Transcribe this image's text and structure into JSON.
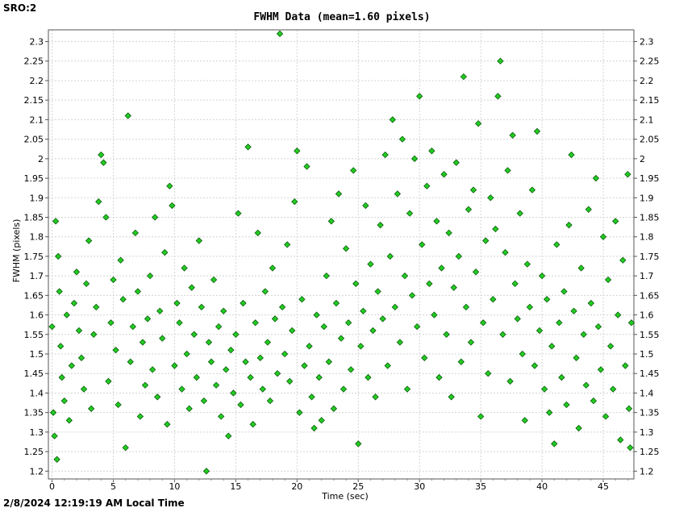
{
  "window": {
    "corner_label": "SRO:2"
  },
  "footer": {
    "timestamp": "2/8/2024 12:19:19 AM Local Time"
  },
  "colors": {
    "point_fill": "#22cc22",
    "point_stroke": "#0a5a0a",
    "grid": "#d4d4d4",
    "background": "#ffffff"
  },
  "chart_data": {
    "type": "scatter",
    "title": "FWHM Data (mean=1.60 pixels)",
    "xlabel": "Time (sec)",
    "ylabel": "FWHM (pixels)",
    "xlim": [
      -0.3,
      47.5
    ],
    "ylim": [
      1.18,
      2.33
    ],
    "x_ticks": [
      0,
      5,
      10,
      15,
      20,
      25,
      30,
      35,
      40,
      45
    ],
    "y_ticks": [
      1.2,
      1.25,
      1.3,
      1.35,
      1.4,
      1.45,
      1.5,
      1.55,
      1.6,
      1.65,
      1.7,
      1.75,
      1.8,
      1.85,
      1.9,
      1.95,
      2,
      2.05,
      2.1,
      2.15,
      2.2,
      2.25,
      2.3
    ],
    "y_tick_labels": [
      "1.2",
      "1.25",
      "1.3",
      "1.35",
      "1.4",
      "1.45",
      "1.5",
      "1.55",
      "1.6",
      "1.65",
      "1.7",
      "1.75",
      "1.8",
      "1.85",
      "1.9",
      "1.95",
      "2",
      "2.05",
      "2.1",
      "2.15",
      "2.2",
      "2.25",
      "2.3"
    ],
    "grid": true,
    "dual_y_axis": true,
    "mean": 1.6,
    "marker": "diamond",
    "series": [
      {
        "name": "",
        "points": [
          [
            0.0,
            1.57
          ],
          [
            0.1,
            1.35
          ],
          [
            0.2,
            1.29
          ],
          [
            0.3,
            1.84
          ],
          [
            0.4,
            1.23
          ],
          [
            0.5,
            1.75
          ],
          [
            0.6,
            1.66
          ],
          [
            0.7,
            1.52
          ],
          [
            0.8,
            1.44
          ],
          [
            1.0,
            1.38
          ],
          [
            1.2,
            1.6
          ],
          [
            1.4,
            1.33
          ],
          [
            1.6,
            1.47
          ],
          [
            1.8,
            1.63
          ],
          [
            2.0,
            1.71
          ],
          [
            2.2,
            1.56
          ],
          [
            2.4,
            1.49
          ],
          [
            2.6,
            1.41
          ],
          [
            2.8,
            1.68
          ],
          [
            3.0,
            1.79
          ],
          [
            3.2,
            1.36
          ],
          [
            3.4,
            1.55
          ],
          [
            3.6,
            1.62
          ],
          [
            3.8,
            1.89
          ],
          [
            4.0,
            2.01
          ],
          [
            4.2,
            1.99
          ],
          [
            4.4,
            1.85
          ],
          [
            4.6,
            1.43
          ],
          [
            4.8,
            1.58
          ],
          [
            5.0,
            1.69
          ],
          [
            5.2,
            1.51
          ],
          [
            5.4,
            1.37
          ],
          [
            5.6,
            1.74
          ],
          [
            5.8,
            1.64
          ],
          [
            6.0,
            1.26
          ],
          [
            6.2,
            2.11
          ],
          [
            6.4,
            1.48
          ],
          [
            6.6,
            1.57
          ],
          [
            6.8,
            1.81
          ],
          [
            7.0,
            1.66
          ],
          [
            7.2,
            1.34
          ],
          [
            7.4,
            1.53
          ],
          [
            7.6,
            1.42
          ],
          [
            7.8,
            1.59
          ],
          [
            8.0,
            1.7
          ],
          [
            8.2,
            1.46
          ],
          [
            8.4,
            1.85
          ],
          [
            8.6,
            1.39
          ],
          [
            8.8,
            1.61
          ],
          [
            9.0,
            1.54
          ],
          [
            9.2,
            1.76
          ],
          [
            9.4,
            1.32
          ],
          [
            9.6,
            1.93
          ],
          [
            9.8,
            1.88
          ],
          [
            10.0,
            1.47
          ],
          [
            10.2,
            1.63
          ],
          [
            10.4,
            1.58
          ],
          [
            10.6,
            1.41
          ],
          [
            10.8,
            1.72
          ],
          [
            11.0,
            1.5
          ],
          [
            11.2,
            1.36
          ],
          [
            11.4,
            1.67
          ],
          [
            11.6,
            1.55
          ],
          [
            11.8,
            1.44
          ],
          [
            12.0,
            1.79
          ],
          [
            12.2,
            1.62
          ],
          [
            12.4,
            1.38
          ],
          [
            12.6,
            1.2
          ],
          [
            12.8,
            1.53
          ],
          [
            13.0,
            1.48
          ],
          [
            13.2,
            1.69
          ],
          [
            13.4,
            1.42
          ],
          [
            13.6,
            1.57
          ],
          [
            13.8,
            1.34
          ],
          [
            14.0,
            1.61
          ],
          [
            14.2,
            1.46
          ],
          [
            14.4,
            1.29
          ],
          [
            14.6,
            1.51
          ],
          [
            14.8,
            1.4
          ],
          [
            15.0,
            1.55
          ],
          [
            15.2,
            1.86
          ],
          [
            15.4,
            1.37
          ],
          [
            15.6,
            1.63
          ],
          [
            15.8,
            1.48
          ],
          [
            16.0,
            2.03
          ],
          [
            16.2,
            1.44
          ],
          [
            16.4,
            1.32
          ],
          [
            16.6,
            1.58
          ],
          [
            16.8,
            1.81
          ],
          [
            17.0,
            1.49
          ],
          [
            17.2,
            1.41
          ],
          [
            17.4,
            1.66
          ],
          [
            17.6,
            1.53
          ],
          [
            17.8,
            1.38
          ],
          [
            18.0,
            1.72
          ],
          [
            18.2,
            1.59
          ],
          [
            18.4,
            1.45
          ],
          [
            18.6,
            2.32
          ],
          [
            18.8,
            1.62
          ],
          [
            19.0,
            1.5
          ],
          [
            19.2,
            1.78
          ],
          [
            19.4,
            1.43
          ],
          [
            19.6,
            1.56
          ],
          [
            19.8,
            1.89
          ],
          [
            20.0,
            2.02
          ],
          [
            20.2,
            1.35
          ],
          [
            20.4,
            1.64
          ],
          [
            20.6,
            1.47
          ],
          [
            20.8,
            1.98
          ],
          [
            21.0,
            1.52
          ],
          [
            21.2,
            1.39
          ],
          [
            21.4,
            1.31
          ],
          [
            21.6,
            1.6
          ],
          [
            21.8,
            1.44
          ],
          [
            22.0,
            1.33
          ],
          [
            22.2,
            1.57
          ],
          [
            22.4,
            1.7
          ],
          [
            22.6,
            1.48
          ],
          [
            22.8,
            1.84
          ],
          [
            23.0,
            1.36
          ],
          [
            23.2,
            1.63
          ],
          [
            23.4,
            1.91
          ],
          [
            23.6,
            1.54
          ],
          [
            23.8,
            1.41
          ],
          [
            24.0,
            1.77
          ],
          [
            24.2,
            1.58
          ],
          [
            24.4,
            1.46
          ],
          [
            24.6,
            1.97
          ],
          [
            24.8,
            1.68
          ],
          [
            25.0,
            1.27
          ],
          [
            25.2,
            1.52
          ],
          [
            25.4,
            1.61
          ],
          [
            25.6,
            1.88
          ],
          [
            25.8,
            1.44
          ],
          [
            26.0,
            1.73
          ],
          [
            26.2,
            1.56
          ],
          [
            26.4,
            1.39
          ],
          [
            26.6,
            1.66
          ],
          [
            26.8,
            1.83
          ],
          [
            27.0,
            1.59
          ],
          [
            27.2,
            2.01
          ],
          [
            27.4,
            1.47
          ],
          [
            27.6,
            1.75
          ],
          [
            27.8,
            2.1
          ],
          [
            28.0,
            1.62
          ],
          [
            28.2,
            1.91
          ],
          [
            28.4,
            1.53
          ],
          [
            28.6,
            2.05
          ],
          [
            28.8,
            1.7
          ],
          [
            29.0,
            1.41
          ],
          [
            29.2,
            1.86
          ],
          [
            29.4,
            1.65
          ],
          [
            29.6,
            2.0
          ],
          [
            29.8,
            1.57
          ],
          [
            30.0,
            2.16
          ],
          [
            30.2,
            1.78
          ],
          [
            30.4,
            1.49
          ],
          [
            30.6,
            1.93
          ],
          [
            30.8,
            1.68
          ],
          [
            31.0,
            2.02
          ],
          [
            31.2,
            1.6
          ],
          [
            31.4,
            1.84
          ],
          [
            31.6,
            1.44
          ],
          [
            31.8,
            1.72
          ],
          [
            32.0,
            1.96
          ],
          [
            32.2,
            1.55
          ],
          [
            32.4,
            1.81
          ],
          [
            32.6,
            1.39
          ],
          [
            32.8,
            1.67
          ],
          [
            33.0,
            1.99
          ],
          [
            33.2,
            1.75
          ],
          [
            33.4,
            1.48
          ],
          [
            33.6,
            2.21
          ],
          [
            33.8,
            1.62
          ],
          [
            34.0,
            1.87
          ],
          [
            34.2,
            1.53
          ],
          [
            34.4,
            1.92
          ],
          [
            34.6,
            1.71
          ],
          [
            34.8,
            2.09
          ],
          [
            35.0,
            1.34
          ],
          [
            35.2,
            1.58
          ],
          [
            35.4,
            1.79
          ],
          [
            35.6,
            1.45
          ],
          [
            35.8,
            1.9
          ],
          [
            36.0,
            1.64
          ],
          [
            36.2,
            1.82
          ],
          [
            36.4,
            2.16
          ],
          [
            36.6,
            2.25
          ],
          [
            36.8,
            1.55
          ],
          [
            37.0,
            1.76
          ],
          [
            37.2,
            1.97
          ],
          [
            37.4,
            1.43
          ],
          [
            37.6,
            2.06
          ],
          [
            37.8,
            1.68
          ],
          [
            38.0,
            1.59
          ],
          [
            38.2,
            1.86
          ],
          [
            38.4,
            1.5
          ],
          [
            38.6,
            1.33
          ],
          [
            38.8,
            1.73
          ],
          [
            39.0,
            1.62
          ],
          [
            39.2,
            1.92
          ],
          [
            39.4,
            1.47
          ],
          [
            39.6,
            2.07
          ],
          [
            39.8,
            1.56
          ],
          [
            40.0,
            1.7
          ],
          [
            40.2,
            1.41
          ],
          [
            40.4,
            1.64
          ],
          [
            40.6,
            1.35
          ],
          [
            40.8,
            1.52
          ],
          [
            41.0,
            1.27
          ],
          [
            41.2,
            1.78
          ],
          [
            41.4,
            1.58
          ],
          [
            41.6,
            1.44
          ],
          [
            41.8,
            1.66
          ],
          [
            42.0,
            1.37
          ],
          [
            42.2,
            1.83
          ],
          [
            42.4,
            2.01
          ],
          [
            42.6,
            1.61
          ],
          [
            42.8,
            1.49
          ],
          [
            43.0,
            1.31
          ],
          [
            43.2,
            1.72
          ],
          [
            43.4,
            1.55
          ],
          [
            43.6,
            1.42
          ],
          [
            43.8,
            1.87
          ],
          [
            44.0,
            1.63
          ],
          [
            44.2,
            1.38
          ],
          [
            44.4,
            1.95
          ],
          [
            44.6,
            1.57
          ],
          [
            44.8,
            1.46
          ],
          [
            45.0,
            1.8
          ],
          [
            45.2,
            1.34
          ],
          [
            45.4,
            1.69
          ],
          [
            45.6,
            1.52
          ],
          [
            45.8,
            1.41
          ],
          [
            46.0,
            1.84
          ],
          [
            46.2,
            1.6
          ],
          [
            46.4,
            1.28
          ],
          [
            46.6,
            1.74
          ],
          [
            46.8,
            1.47
          ],
          [
            47.0,
            1.96
          ],
          [
            47.1,
            1.36
          ],
          [
            47.2,
            1.26
          ],
          [
            47.3,
            1.58
          ]
        ]
      }
    ]
  }
}
